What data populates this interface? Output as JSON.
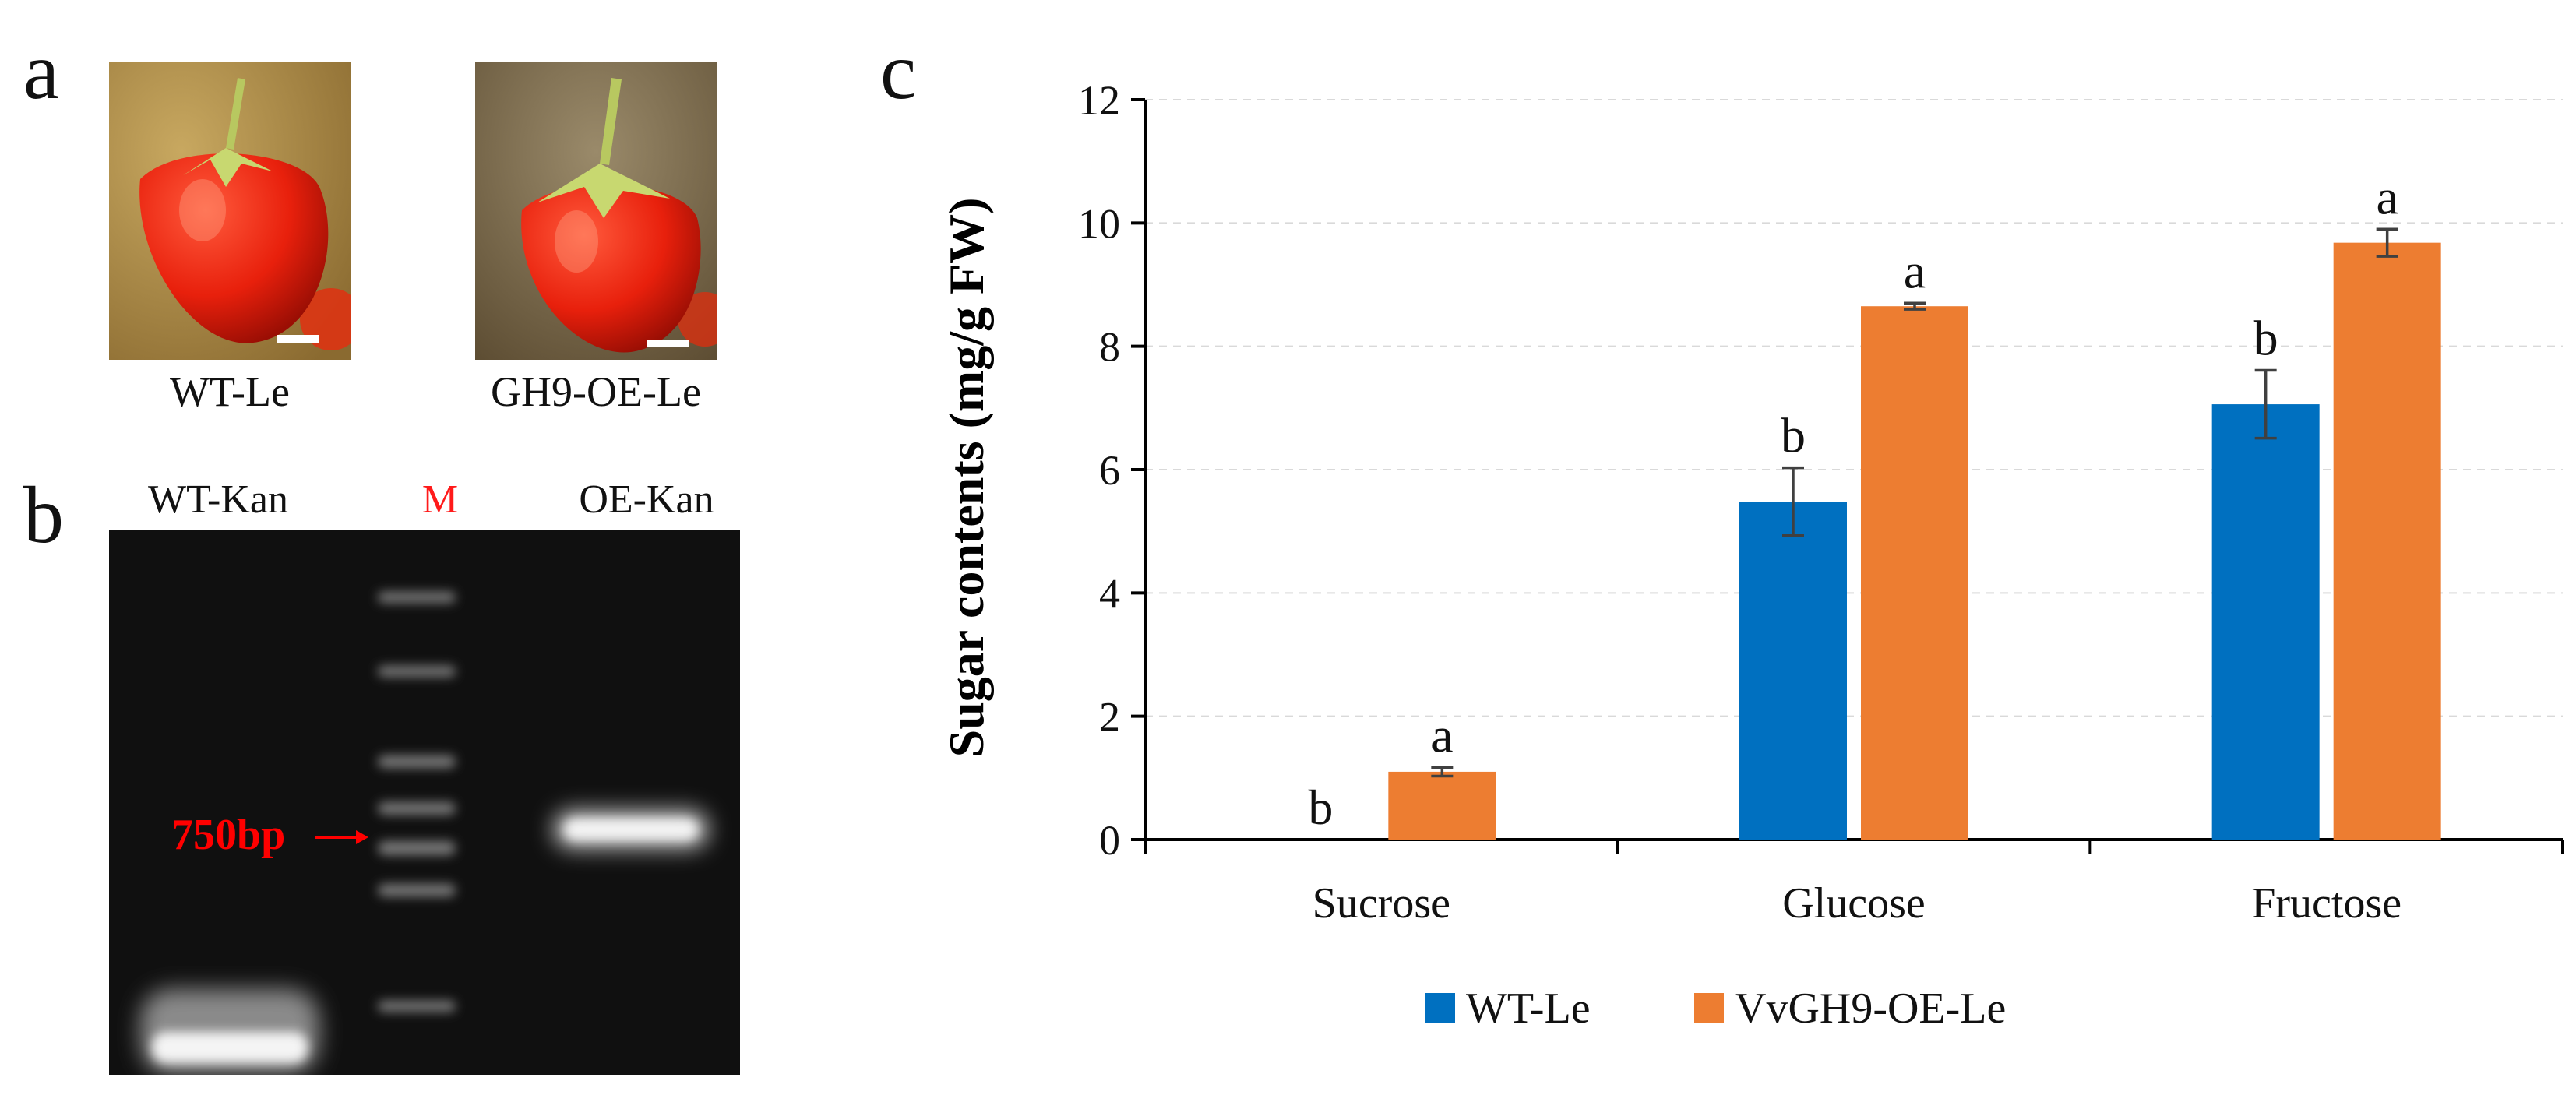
{
  "panels": {
    "a": {
      "letter": "a",
      "photos": [
        {
          "label": "WT-Le"
        },
        {
          "label": "GH9-OE-Le"
        }
      ]
    },
    "b": {
      "letter": "b",
      "lanes": [
        {
          "label": "WT-Kan",
          "color": "#111111"
        },
        {
          "label": "M",
          "color": "#ff1a1a"
        },
        {
          "label": "OE-Kan",
          "color": "#111111"
        }
      ],
      "marker_label": "750bp",
      "marker_color": "#ff0000"
    },
    "c": {
      "letter": "c"
    }
  },
  "chart_data": {
    "type": "bar",
    "title": "",
    "categories": [
      "Sucrose",
      "Glucose",
      "Fructose"
    ],
    "ylabel": "Sugar contents (mg/g FW)",
    "xlabel": "",
    "ylim": [
      0,
      12
    ],
    "yticks": [
      0,
      2,
      4,
      6,
      8,
      10,
      12
    ],
    "grid": true,
    "legend_placement": "bottom",
    "series": [
      {
        "name": "WT-Le",
        "color": "#0070c0",
        "values": [
          0,
          5.48,
          7.06
        ],
        "errors": [
          0,
          0.55,
          0.55
        ],
        "letters": [
          "b",
          "b",
          "b"
        ]
      },
      {
        "name": "VvGH9-OE-Le",
        "color": "#ed7d31",
        "values": [
          1.1,
          8.65,
          9.68
        ],
        "errors": [
          0.07,
          0.05,
          0.22
        ],
        "letters": [
          "a",
          "a",
          "a"
        ]
      }
    ]
  }
}
